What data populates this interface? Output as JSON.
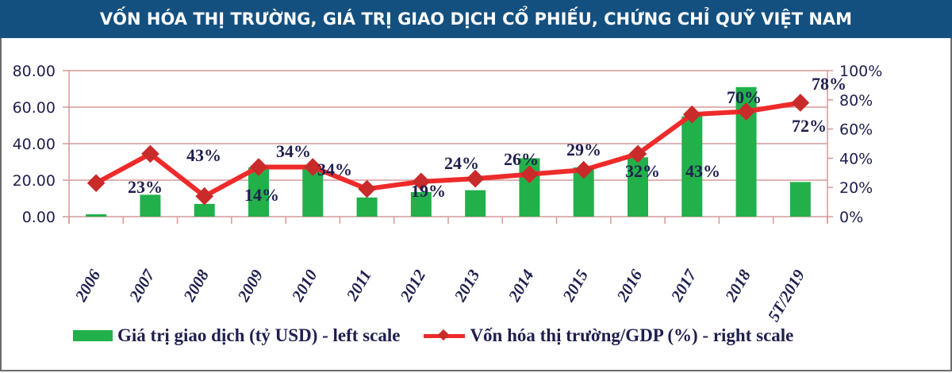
{
  "title": "VỐN HÓA THỊ TRƯỜNG, GIÁ TRỊ GIAO DỊCH CỔ PHIẾU, CHỨNG CHỈ QUỸ VIỆT NAM",
  "chart_data": {
    "type": "bar+line",
    "title": "VỐN HÓA THỊ TRƯỜNG, GIÁ TRỊ GIAO DỊCH CỔ PHIẾU, CHỨNG CHỈ QUỸ VIỆT NAM",
    "categories": [
      "2006",
      "2007",
      "2008",
      "2009",
      "2010",
      "2011",
      "2012",
      "2013",
      "2014",
      "2015",
      "2016",
      "2017",
      "2018",
      "5T/2019"
    ],
    "series": [
      {
        "name": "Giá trị giao dịch (tỷ USD) - left scale",
        "type": "bar",
        "axis": "left",
        "color": "#22b04b",
        "values": [
          1.3,
          12,
          7,
          27,
          26.5,
          10.5,
          13.5,
          14.5,
          32,
          27,
          32.5,
          55,
          71,
          19
        ]
      },
      {
        "name": "Vốn hóa thị trường/GDP (%) - right scale",
        "type": "line",
        "axis": "right",
        "color": "#ee2a2a",
        "marker": "diamond",
        "values": [
          23,
          43,
          14,
          34,
          34,
          19,
          24,
          26,
          29,
          32,
          43,
          70,
          72,
          78
        ],
        "data_labels": [
          "23%",
          "43%",
          "14%",
          "34%",
          "34%",
          "19%",
          "24%",
          "26%",
          "29%",
          "32%",
          "43%",
          "70%",
          "72%",
          "78%"
        ]
      }
    ],
    "left_axis": {
      "ylim": [
        0,
        80
      ],
      "ticks": [
        "0.00",
        "20.00",
        "40.00",
        "60.00",
        "80.00"
      ]
    },
    "right_axis": {
      "ylim": [
        0,
        100
      ],
      "ticks": [
        "0%",
        "20%",
        "40%",
        "60%",
        "80%",
        "100%"
      ]
    },
    "grid": true,
    "legend": "bottom"
  }
}
